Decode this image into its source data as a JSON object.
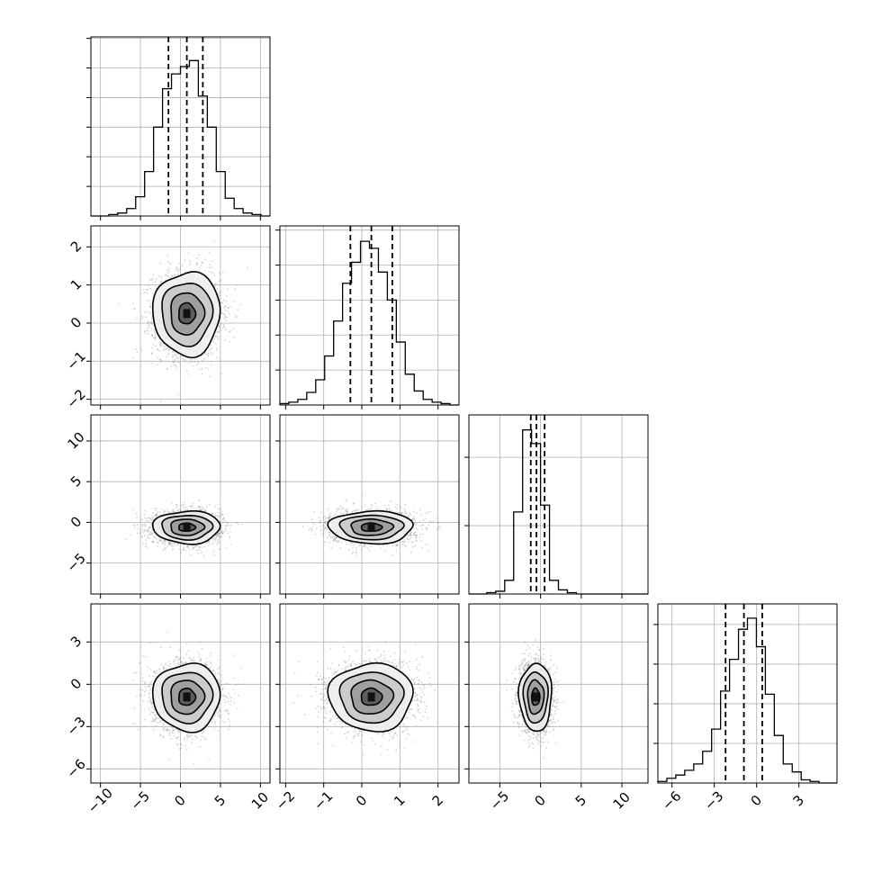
{
  "chart_data": {
    "type": "corner",
    "grid": true,
    "variables": [
      {
        "index": 0,
        "range": [
          -11.2,
          11.2
        ],
        "ticks": [
          -10,
          -5,
          0,
          5,
          10
        ],
        "tick_labels": [
          "−10",
          "−5",
          "0",
          "5",
          "10"
        ],
        "quantiles": [
          -1.5,
          0.8,
          2.8
        ],
        "center": 0.8,
        "sigma": 2.1
      },
      {
        "index": 1,
        "range": [
          -2.15,
          2.55
        ],
        "ticks": [
          -2,
          -1,
          0,
          1,
          2
        ],
        "tick_labels": [
          "−2",
          "−1",
          "0",
          "1",
          "2"
        ],
        "quantiles": [
          -0.3,
          0.25,
          0.8
        ],
        "center": 0.25,
        "sigma": 0.55
      },
      {
        "index": 2,
        "range": [
          -8.8,
          13.2
        ],
        "ticks": [
          -5,
          0,
          5,
          10
        ],
        "tick_labels": [
          "−5",
          "0",
          "5",
          "10"
        ],
        "quantiles": [
          -1.2,
          -0.5,
          0.5
        ],
        "center": -0.6,
        "sigma": 1.0
      },
      {
        "index": 3,
        "range": [
          -7.0,
          5.7
        ],
        "ticks": [
          -6,
          -3,
          0,
          3
        ],
        "tick_labels": [
          "−6",
          "−3",
          "0",
          "3"
        ],
        "quantiles": [
          -2.2,
          -0.9,
          0.4
        ],
        "center": -0.9,
        "sigma": 1.2
      }
    ],
    "histograms": [
      {
        "var": 0,
        "edges": [
          -11.2,
          -10.08,
          -8.96,
          -7.84,
          -6.72,
          -5.6,
          -4.48,
          -3.36,
          -2.24,
          -1.12,
          0,
          1.12,
          2.24,
          3.36,
          4.48,
          5.6,
          6.72,
          7.84,
          8.96,
          10.08,
          11.2
        ],
        "counts": [
          0,
          0,
          1,
          2,
          5,
          13,
          30,
          60,
          86,
          96,
          101,
          105,
          81,
          60,
          30,
          12,
          5,
          2,
          1,
          0
        ]
      },
      {
        "var": 1,
        "edges": [
          -2.15,
          -1.915,
          -1.68,
          -1.445,
          -1.21,
          -0.975,
          -0.74,
          -0.505,
          -0.27,
          -0.035,
          0.2,
          0.435,
          0.67,
          0.905,
          1.14,
          1.375,
          1.61,
          1.845,
          2.08,
          2.315,
          2.55
        ],
        "counts": [
          1,
          2,
          4,
          9,
          18,
          35,
          60,
          87,
          102,
          117,
          112,
          95,
          75,
          45,
          22,
          10,
          4,
          2,
          1,
          0
        ]
      },
      {
        "var": 2,
        "edges": [
          -8.8,
          -7.7,
          -6.6,
          -5.5,
          -4.4,
          -3.3,
          -2.2,
          -1.1,
          0,
          1.1,
          2.2,
          3.3,
          4.4,
          5.5,
          6.6,
          7.7,
          8.8,
          9.9,
          11,
          12.1,
          13.2
        ],
        "counts": [
          0,
          0,
          1,
          2,
          10,
          60,
          120,
          110,
          65,
          10,
          3,
          1,
          0,
          0,
          0,
          0,
          0,
          0,
          0,
          0
        ]
      },
      {
        "var": 3,
        "edges": [
          -7.0,
          -6.365,
          -5.73,
          -5.095,
          -4.46,
          -3.825,
          -3.19,
          -2.555,
          -1.92,
          -1.285,
          -0.65,
          -0.015,
          0.62,
          1.255,
          1.89,
          2.525,
          3.16,
          3.795,
          4.43,
          5.065,
          5.7
        ],
        "counts": [
          1,
          3,
          5,
          8,
          12,
          20,
          34,
          58,
          78,
          97,
          104,
          86,
          56,
          30,
          12,
          7,
          2,
          1,
          0,
          0
        ]
      }
    ],
    "hist_ymax": [
      121,
      128,
      131,
      113
    ],
    "hist_yticks": [
      [
        20,
        40,
        60,
        80,
        100,
        120
      ],
      [
        25,
        50,
        75,
        100,
        125
      ],
      [
        50,
        100
      ],
      [
        25,
        50,
        75,
        100
      ]
    ],
    "pairs": [
      {
        "x": 0,
        "y": 1,
        "n_samples": 2500,
        "contour_radii": [
          0.5,
          1.0,
          1.5,
          2.0
        ]
      },
      {
        "x": 0,
        "y": 2,
        "n_samples": 2500,
        "contour_radii": [
          0.5,
          1.0,
          1.5,
          2.0
        ]
      },
      {
        "x": 1,
        "y": 2,
        "n_samples": 2500,
        "contour_radii": [
          0.5,
          1.0,
          1.5,
          2.0
        ]
      },
      {
        "x": 0,
        "y": 3,
        "n_samples": 2500,
        "contour_radii": [
          0.5,
          1.0,
          1.5,
          2.0
        ]
      },
      {
        "x": 1,
        "y": 3,
        "n_samples": 2500,
        "contour_radii": [
          0.5,
          1.0,
          1.5,
          2.0
        ]
      },
      {
        "x": 2,
        "y": 3,
        "n_samples": 2500,
        "contour_radii": [
          0.5,
          1.0,
          1.5,
          2.0
        ]
      }
    ],
    "colors": {
      "line": "#000000",
      "grid": "#b0b0b0",
      "scatter": "#888888",
      "fill_levels": [
        "#f0f0f0",
        "#c8c8c8",
        "#9a9a9a",
        "#555555"
      ]
    }
  }
}
